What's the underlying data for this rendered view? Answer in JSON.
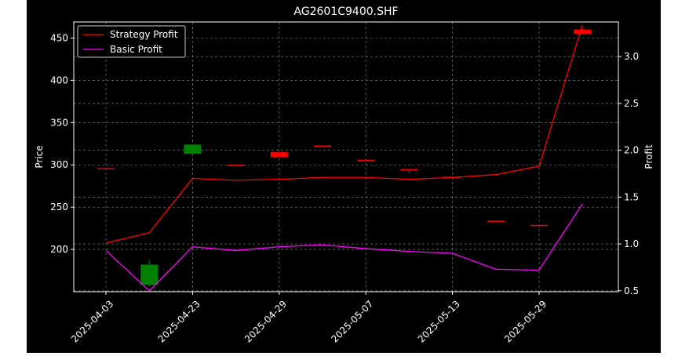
{
  "chart_data": {
    "type": "line",
    "title": "AG2601C9400.SHF",
    "xlabel": "",
    "ylabel_left": "Price",
    "ylabel_right": "Profit",
    "x_tick_labels": [
      "2025-04-03",
      "2025-04-23",
      "2025-04-29",
      "2025-05-07",
      "2025-05-13",
      "2025-05-29"
    ],
    "y_left_ticks": [
      200,
      250,
      300,
      350,
      400,
      450
    ],
    "y_right_ticks": [
      0.5,
      1.0,
      1.5,
      2.0,
      2.5,
      3.0
    ],
    "y_left_range": [
      150,
      469
    ],
    "y_right_range": [
      0.49,
      3.37
    ],
    "grid": true,
    "legend_position": "top-left",
    "candles": [
      {
        "open": 296,
        "close": 296,
        "high": 296,
        "low": 296,
        "color": "#ff0000"
      },
      {
        "open": 158,
        "close": 182,
        "high": 188,
        "low": 156,
        "color": "#008000"
      },
      {
        "open": 313,
        "close": 324,
        "high": 324,
        "low": 313,
        "color": "#008000"
      },
      {
        "open": 300,
        "close": 300,
        "high": 300,
        "low": 300,
        "color": "#ff0000"
      },
      {
        "open": 315,
        "close": 309,
        "high": 315,
        "low": 309,
        "color": "#ff0000"
      },
      {
        "open": 323,
        "close": 323,
        "high": 323,
        "low": 323,
        "color": "#ff0000"
      },
      {
        "open": 306,
        "close": 306,
        "high": 306,
        "low": 306,
        "color": "#ff0000"
      },
      {
        "open": 295,
        "close": 295,
        "high": 295,
        "low": 290,
        "color": "#ff0000"
      },
      {
        "open": 286,
        "close": 286,
        "high": 286,
        "low": 286,
        "color": "#ff0000"
      },
      {
        "open": 234,
        "close": 234,
        "high": 234,
        "low": 234,
        "color": "#ff0000"
      },
      {
        "open": 229,
        "close": 229,
        "high": 229,
        "low": 229,
        "color": "#ff0000"
      },
      {
        "open": 460,
        "close": 455,
        "high": 462,
        "low": 455,
        "color": "#ff0000"
      }
    ],
    "series": [
      {
        "name": "Strategy Profit",
        "color": "#ff0000",
        "axis": "right",
        "values": [
          1.01,
          1.12,
          1.7,
          1.68,
          1.69,
          1.71,
          1.71,
          1.69,
          1.71,
          1.74,
          1.83,
          3.34
        ]
      },
      {
        "name": "Basic Profit",
        "color": "#ff00ff",
        "axis": "right",
        "values": [
          0.93,
          0.5,
          0.97,
          0.93,
          0.97,
          0.99,
          0.95,
          0.92,
          0.9,
          0.73,
          0.72,
          1.43
        ]
      }
    ]
  }
}
